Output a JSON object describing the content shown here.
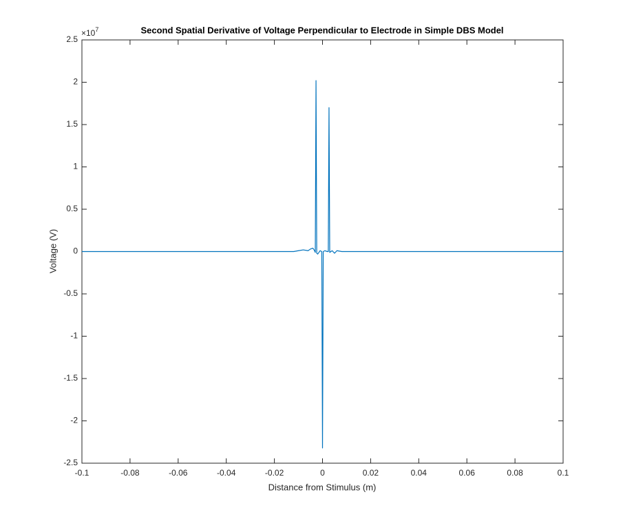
{
  "chart_data": {
    "type": "line",
    "title": "Second Spatial Derivative of Voltage Perpendicular to Electrode in Simple DBS Model",
    "xlabel": "Distance from Stimulus (m)",
    "ylabel": "Voltage (V)",
    "y_multiplier": {
      "base": "×10",
      "exponent": "7"
    },
    "x": [
      -0.1,
      -0.012,
      -0.01,
      -0.008,
      -0.006,
      -0.005,
      -0.004,
      -0.0035,
      -0.003,
      -0.0027,
      -0.0024,
      -0.002,
      -0.001,
      -0.0003,
      0,
      0.0003,
      0.001,
      0.002,
      0.0024,
      0.0027,
      0.003,
      0.004,
      0.005,
      0.006,
      0.008,
      0.01,
      0.1
    ],
    "series": [
      {
        "color": "#0072bd",
        "values": [
          0,
          0,
          0.01,
          0.02,
          0.01,
          0.03,
          0.04,
          0.02,
          -0.01,
          2.02,
          -0.02,
          -0.03,
          0.01,
          0,
          -2.32,
          0,
          0.01,
          0,
          0,
          1.7,
          -0.01,
          0.01,
          -0.02,
          0.01,
          0,
          0,
          0
        ]
      }
    ],
    "xlim": [
      -0.1,
      0.1
    ],
    "xticks": [
      -0.1,
      -0.08,
      -0.06,
      -0.04,
      -0.02,
      0,
      0.02,
      0.04,
      0.06,
      0.08,
      0.1
    ],
    "ylim": [
      -2.5,
      2.5
    ],
    "yticks": [
      -2.5,
      -2,
      -1.5,
      -1,
      -0.5,
      0,
      0.5,
      1,
      1.5,
      2,
      2.5
    ],
    "grid": false
  }
}
